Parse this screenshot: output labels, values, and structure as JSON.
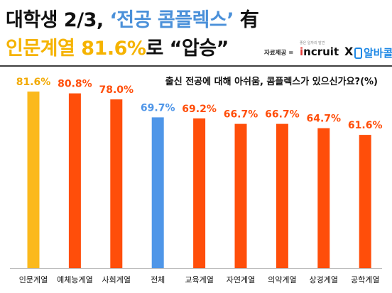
{
  "header": {
    "line1_part1": "대학생 2/3, ",
    "line1_part2": "‘전공 콤플렉스’",
    "line1_part3": " 有",
    "line2_part1": "인문계열 81.6%",
    "line2_part2": "로 “압승”"
  },
  "source": {
    "label": "자료제공 =",
    "tagline": "좋은 일자리 발견",
    "brand1_i": "i",
    "brand1_rest": "ncruit",
    "x": "X",
    "brand2": "알바콜"
  },
  "chart_data": {
    "type": "bar",
    "title": "출신 전공에 대해 아쉬움, 콤플렉스가 있으신가요?(%)",
    "categories": [
      "인문계열",
      "예체능계열",
      "사회계열",
      "전체",
      "교육계열",
      "자연계열",
      "의약계열",
      "상경계열",
      "공학계열"
    ],
    "values": [
      81.6,
      80.8,
      78.0,
      69.7,
      69.2,
      66.7,
      66.7,
      64.7,
      61.6
    ],
    "value_labels": [
      "81.6%",
      "80.8%",
      "78.0%",
      "69.7%",
      "69.2%",
      "66.7%",
      "66.7%",
      "64.7%",
      "61.6%"
    ],
    "colors": [
      "#fbb91c",
      "#ff4e0a",
      "#ff4e0a",
      "#4f96e8",
      "#ff4e0a",
      "#ff4e0a",
      "#ff4e0a",
      "#ff4e0a",
      "#ff4e0a"
    ],
    "label_colors": [
      "#f2a900",
      "#ff4e0a",
      "#ff4e0a",
      "#4f96e8",
      "#ff4e0a",
      "#ff4e0a",
      "#ff4e0a",
      "#ff4e0a",
      "#ff4e0a"
    ],
    "ylim": [
      0,
      100
    ],
    "grid": false,
    "legend": "none"
  }
}
